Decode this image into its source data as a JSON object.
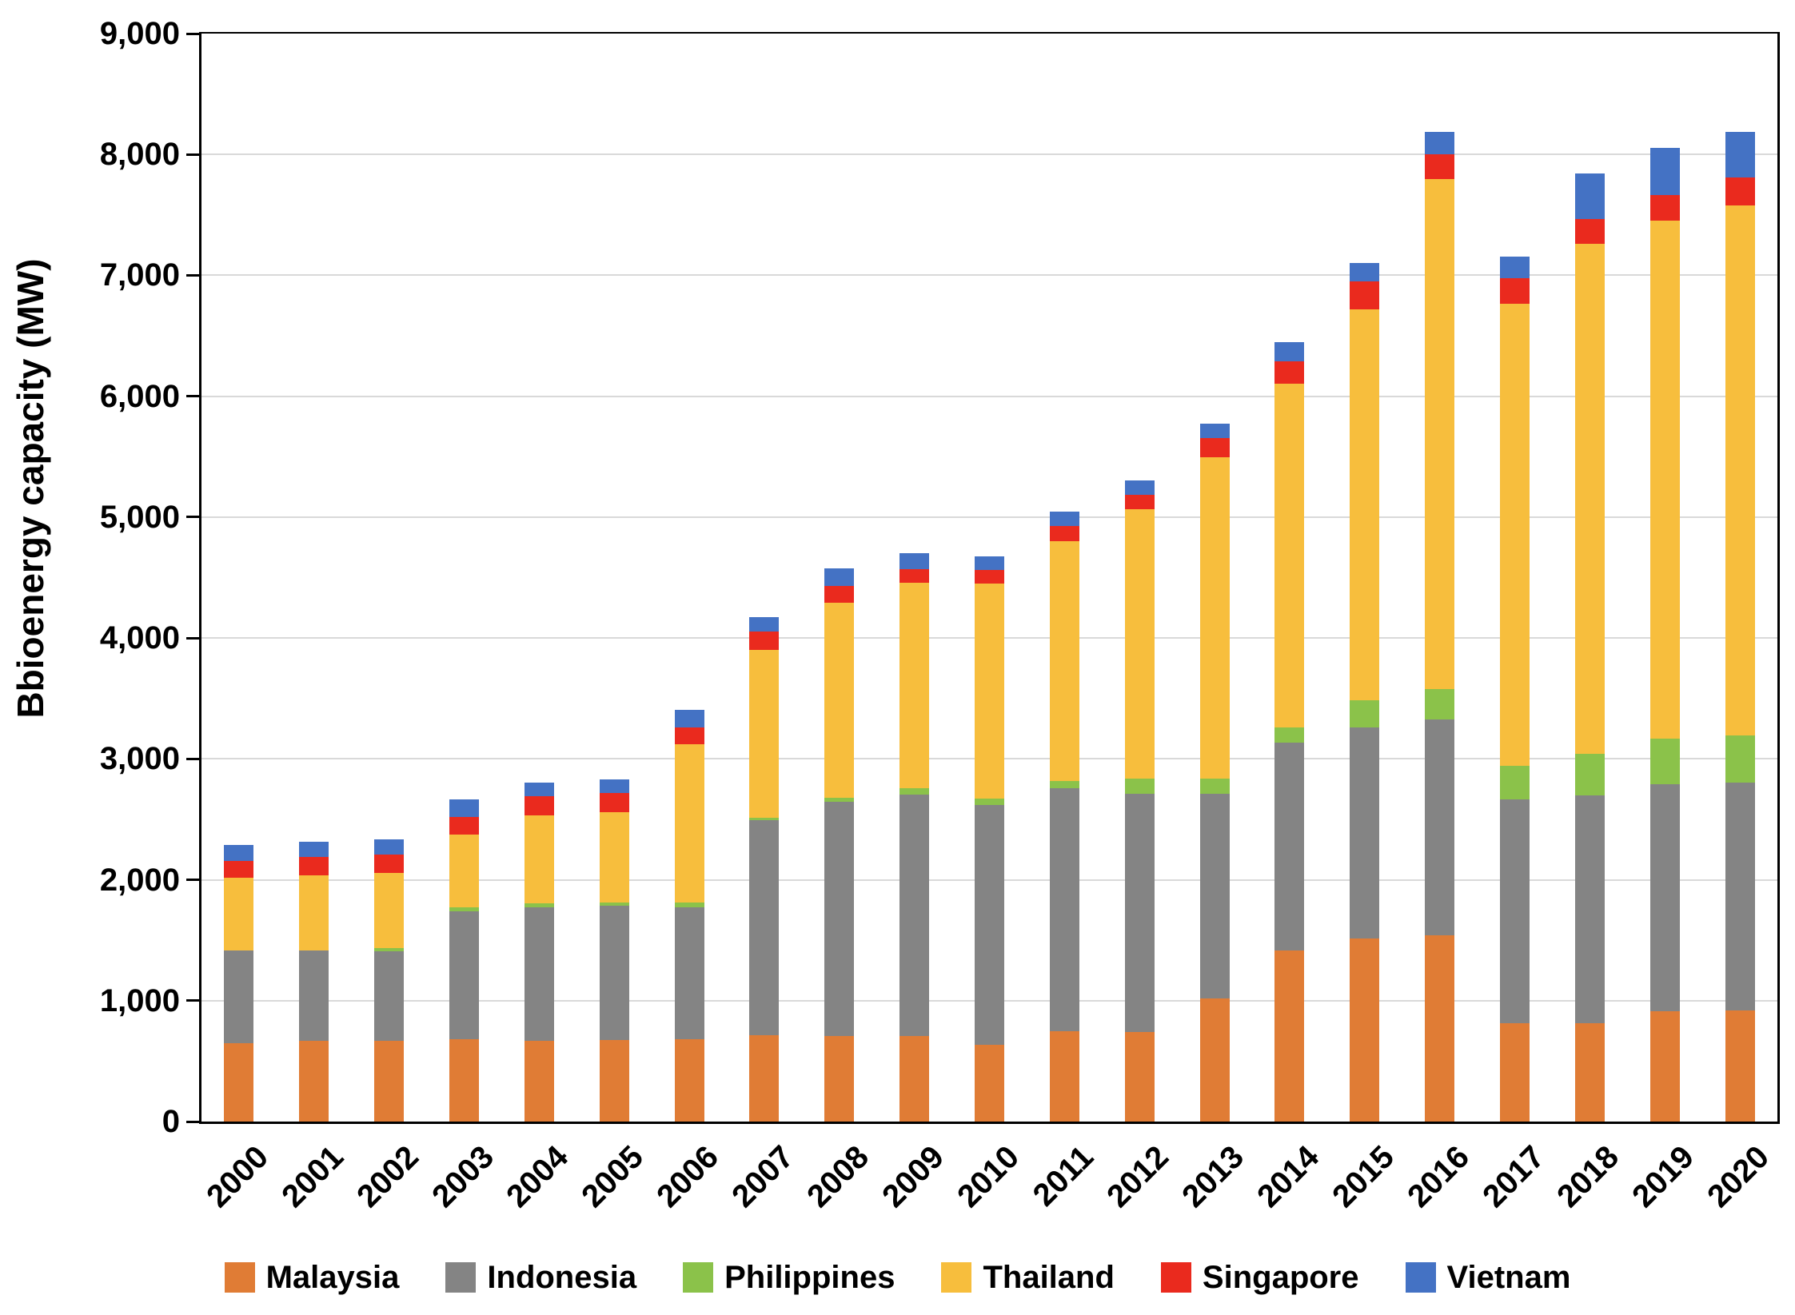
{
  "chart_data": {
    "type": "bar",
    "stacked": true,
    "title": "",
    "xlabel": "",
    "ylabel": "Bbioenergy capacity (MW)",
    "ylim": [
      0,
      9000
    ],
    "ytick_step": 1000,
    "ytick_labels": [
      "0",
      "1,000",
      "2,000",
      "3,000",
      "4,000",
      "5,000",
      "6,000",
      "7,000",
      "8,000",
      "9,000"
    ],
    "grid": true,
    "legend_position": "bottom",
    "categories": [
      "2000",
      "2001",
      "2002",
      "2003",
      "2004",
      "2005",
      "2006",
      "2007",
      "2008",
      "2009",
      "2010",
      "2011",
      "2012",
      "2013",
      "2014",
      "2015",
      "2016",
      "2017",
      "2018",
      "2019",
      "2020"
    ],
    "series": [
      {
        "name": "Malaysia",
        "color": "#E07C35",
        "values": [
          650,
          670,
          670,
          680,
          670,
          675,
          680,
          715,
          705,
          705,
          635,
          745,
          740,
          1020,
          1415,
          1515,
          1540,
          815,
          815,
          910,
          920
        ]
      },
      {
        "name": "Indonesia",
        "color": "#848484",
        "values": [
          765,
          745,
          740,
          1060,
          1105,
          1110,
          1090,
          1775,
          1940,
          2000,
          1985,
          2010,
          1970,
          1690,
          1720,
          1745,
          1785,
          1850,
          1880,
          1880,
          1885
        ]
      },
      {
        "name": "Philippines",
        "color": "#8BC24A",
        "values": [
          0,
          0,
          25,
          30,
          30,
          25,
          40,
          25,
          35,
          50,
          55,
          60,
          125,
          125,
          125,
          225,
          255,
          275,
          350,
          380,
          390
        ]
      },
      {
        "name": "Thailand",
        "color": "#F7BE3D",
        "values": [
          600,
          620,
          620,
          605,
          725,
          750,
          1310,
          1390,
          1615,
          1700,
          1775,
          1985,
          2230,
          2660,
          2845,
          3235,
          4220,
          3825,
          4215,
          4280,
          4385
        ]
      },
      {
        "name": "Singapore",
        "color": "#EA2A1E",
        "values": [
          140,
          155,
          155,
          145,
          165,
          155,
          140,
          150,
          135,
          115,
          110,
          130,
          120,
          160,
          185,
          230,
          200,
          210,
          205,
          215,
          230
        ]
      },
      {
        "name": "Vietnam",
        "color": "#4472C4",
        "values": [
          135,
          125,
          125,
          145,
          110,
          115,
          145,
          120,
          145,
          130,
          115,
          115,
          120,
          120,
          155,
          155,
          190,
          180,
          380,
          390,
          375
        ]
      }
    ]
  }
}
